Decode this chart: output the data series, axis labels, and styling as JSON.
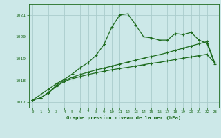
{
  "title": "Graphe pression niveau de la mer (hPa)",
  "background_color": "#cce8e8",
  "grid_color": "#aacccc",
  "line_color": "#1e6b1e",
  "xlim": [
    -0.5,
    23.5
  ],
  "ylim": [
    1016.75,
    1021.5
  ],
  "yticks": [
    1017,
    1018,
    1019,
    1020,
    1021
  ],
  "xticks": [
    0,
    1,
    2,
    3,
    4,
    5,
    6,
    7,
    8,
    9,
    10,
    11,
    12,
    13,
    14,
    15,
    16,
    17,
    18,
    19,
    20,
    21,
    22,
    23
  ],
  "series1_y": [
    1017.1,
    1017.35,
    1017.6,
    1017.85,
    1018.05,
    1018.3,
    1018.58,
    1018.82,
    1019.15,
    1019.65,
    1020.45,
    1021.0,
    1021.05,
    1020.55,
    1020.0,
    1019.95,
    1019.85,
    1019.85,
    1020.15,
    1020.1,
    1020.2,
    1019.85,
    1019.7,
    1018.75
  ],
  "series2_y": [
    1017.1,
    1017.2,
    1017.45,
    1017.78,
    1018.0,
    1018.15,
    1018.27,
    1018.38,
    1018.48,
    1018.57,
    1018.66,
    1018.75,
    1018.84,
    1018.93,
    1019.02,
    1019.1,
    1019.18,
    1019.27,
    1019.38,
    1019.48,
    1019.58,
    1019.68,
    1019.78,
    1018.8
  ],
  "series3_y": [
    1017.1,
    1017.2,
    1017.43,
    1017.73,
    1017.95,
    1018.08,
    1018.18,
    1018.27,
    1018.35,
    1018.42,
    1018.49,
    1018.55,
    1018.6,
    1018.66,
    1018.72,
    1018.78,
    1018.83,
    1018.89,
    1018.96,
    1019.02,
    1019.08,
    1019.14,
    1019.2,
    1018.8
  ]
}
